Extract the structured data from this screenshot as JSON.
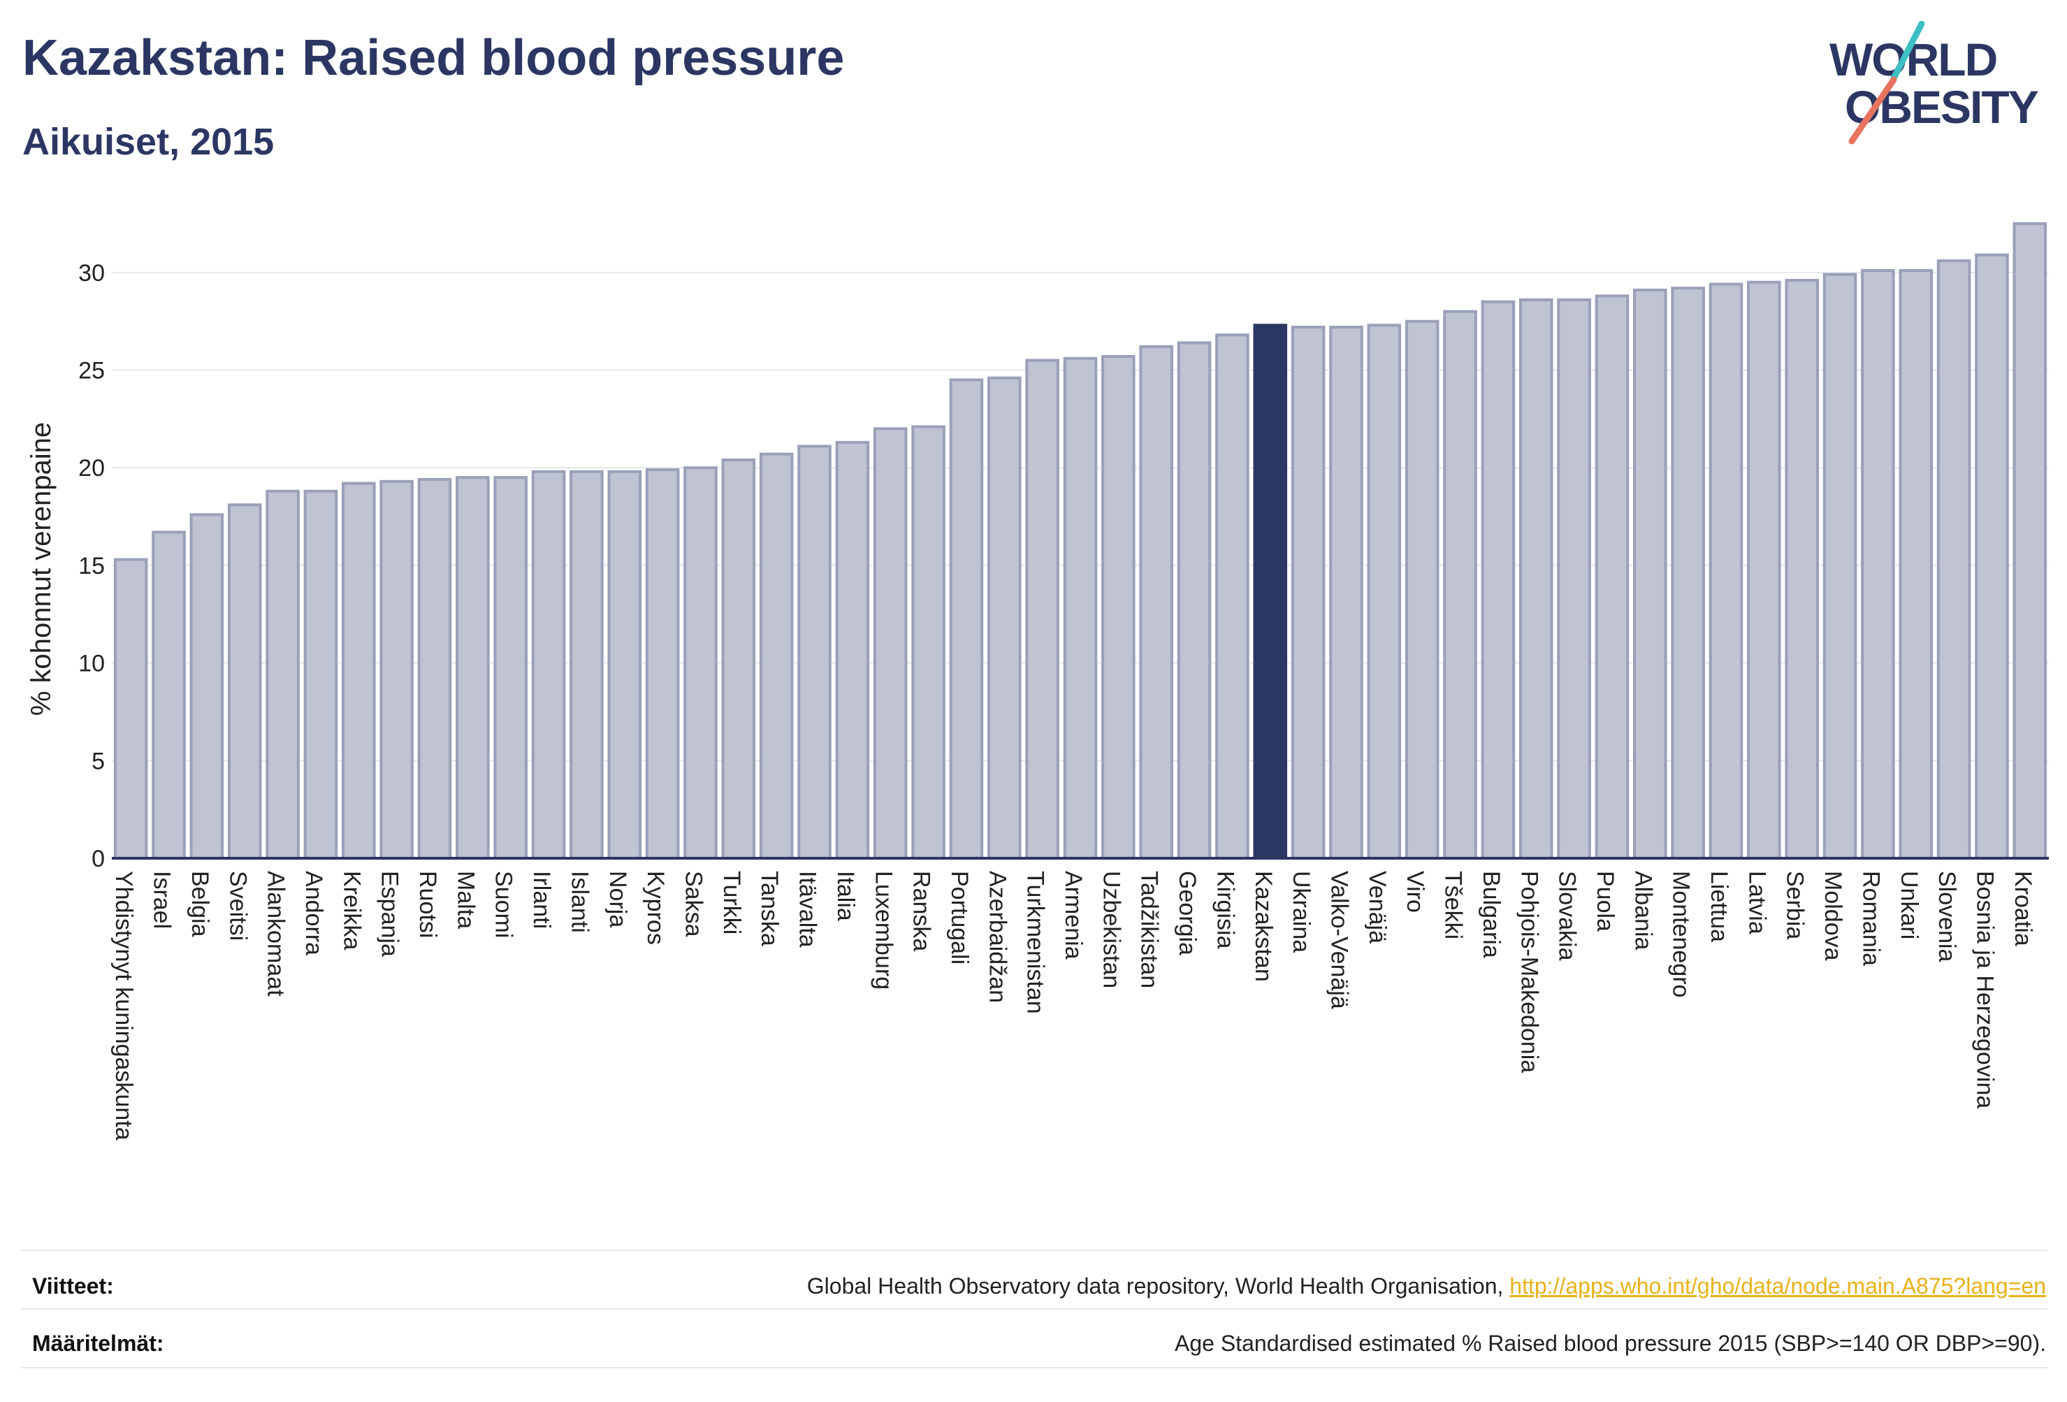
{
  "header": {
    "title": "Kazakstan: Raised blood pressure",
    "subtitle": "Aikuiset, 2015"
  },
  "logo": {
    "line1": "WORLD",
    "line2": "OBESITY"
  },
  "colors": {
    "bar": "#bfc3d2",
    "bar_stroke": "#9aa0b8",
    "highlight": "#2b3663",
    "grid": "#e6e7ec",
    "axis": "#2b3663",
    "logo_teal": "#3dbfc4",
    "logo_coral": "#e8735f",
    "link": "#e8b21a"
  },
  "chart_data": {
    "type": "bar",
    "ylabel": "% kohonnut verenpaine",
    "ylim": [
      0,
      32.5
    ],
    "yticks": [
      0,
      5,
      10,
      15,
      20,
      25,
      30
    ],
    "grid": true,
    "highlight": "Kazakstan",
    "categories": [
      "Yhdistynyt kuningaskunta",
      "Israel",
      "Belgia",
      "Sveitsi",
      "Alankomaat",
      "Andorra",
      "Kreikka",
      "Espanja",
      "Ruotsi",
      "Malta",
      "Suomi",
      "Irlanti",
      "Islanti",
      "Norja",
      "Kypros",
      "Saksa",
      "Turkki",
      "Tanska",
      "Itävalta",
      "Italia",
      "Luxemburg",
      "Ranska",
      "Portugali",
      "Azerbaidžan",
      "Turkmenistan",
      "Armenia",
      "Uzbekistan",
      "Tadžikistan",
      "Georgia",
      "Kirgisia",
      "Kazakstan",
      "Ukraina",
      "Valko-Venäjä",
      "Venäjä",
      "Viro",
      "Tšekki",
      "Bulgaria",
      "Pohjois-Makedonia",
      "Slovakia",
      "Puola",
      "Albania",
      "Montenegro",
      "Liettua",
      "Latvia",
      "Serbia",
      "Moldova",
      "Romania",
      "Unkari",
      "Slovenia",
      "Bosnia ja Herzegovina",
      "Kroatia"
    ],
    "values": [
      15.3,
      16.7,
      17.6,
      18.1,
      18.8,
      18.8,
      19.2,
      19.3,
      19.4,
      19.5,
      19.5,
      19.8,
      19.8,
      19.8,
      19.9,
      20.0,
      20.4,
      20.7,
      21.1,
      21.3,
      22.0,
      22.1,
      24.5,
      24.6,
      25.5,
      25.6,
      25.7,
      26.2,
      26.4,
      26.8,
      27.3,
      27.2,
      27.2,
      27.3,
      27.5,
      28.0,
      28.5,
      28.6,
      28.6,
      28.8,
      29.1,
      29.2,
      29.4,
      29.5,
      29.6,
      29.9,
      30.1,
      30.1,
      30.6,
      30.9,
      32.5
    ]
  },
  "footer": {
    "sources_label": "Viitteet:",
    "sources_text": "Global Health Observatory data repository, World Health Organisation, ",
    "sources_link": "http://apps.who.int/gho/data/node.main.A875?lang=en",
    "definitions_label": "Määritelmät:",
    "definitions_text": "Age Standardised estimated % Raised blood pressure 2015 (SBP>=140 OR DBP>=90)."
  }
}
